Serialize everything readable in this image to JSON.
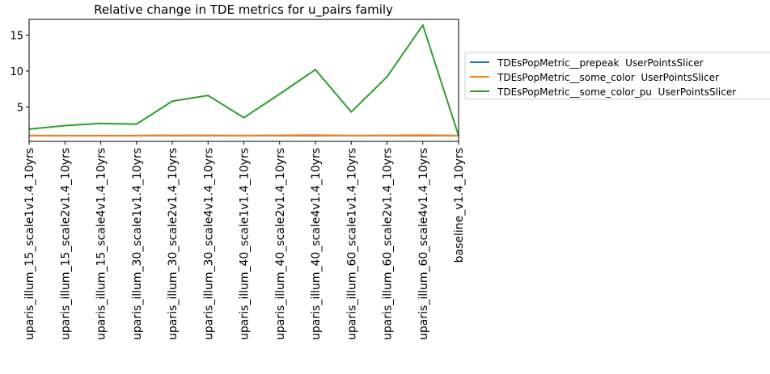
{
  "chart_data": {
    "type": "line",
    "title": "Relative change in TDE metrics for u_pairs family",
    "categories": [
      "uparis_illum_15_scale1v1.4_10yrs",
      "uparis_illum_15_scale2v1.4_10yrs",
      "uparis_illum_15_scale4v1.4_10yrs",
      "uparis_illum_30_scale1v1.4_10yrs",
      "uparis_illum_30_scale2v1.4_10yrs",
      "uparis_illum_30_scale4v1.4_10yrs",
      "uparis_illum_40_scale1v1.4_10yrs",
      "uparis_illum_40_scale2v1.4_10yrs",
      "uparis_illum_40_scale4v1.4_10yrs",
      "uparis_illum_60_scale1v1.4_10yrs",
      "uparis_illum_60_scale2v1.4_10yrs",
      "uparis_illum_60_scale4v1.4_10yrs",
      "baseline_v1.4_10yrs"
    ],
    "series": [
      {
        "name": "TDEsPopMetric__prepeak  UserPointsSlicer",
        "color": "#1f77b4",
        "values": [
          1,
          1,
          1,
          1,
          1,
          1,
          1,
          1,
          1,
          1,
          1,
          1,
          1
        ]
      },
      {
        "name": "TDEsPopMetric__some_color  UserPointsSlicer",
        "color": "#ff7f0e",
        "values": [
          1.0,
          1.0,
          1.0,
          1.0,
          1.05,
          1.03,
          1.0,
          1.05,
          1.07,
          1.0,
          1.03,
          1.07,
          1.0
        ]
      },
      {
        "name": "TDEsPopMetric__some_color_pu  UserPointsSlicer",
        "color": "#2ca02c",
        "values": [
          1.9,
          2.4,
          2.7,
          2.6,
          5.8,
          6.6,
          3.5,
          6.8,
          10.2,
          4.3,
          9.2,
          16.4,
          1.0
        ]
      }
    ],
    "ylim": [
      0.2,
      17.2
    ],
    "yticks": [
      5,
      10,
      15
    ],
    "legend": "outside right"
  }
}
